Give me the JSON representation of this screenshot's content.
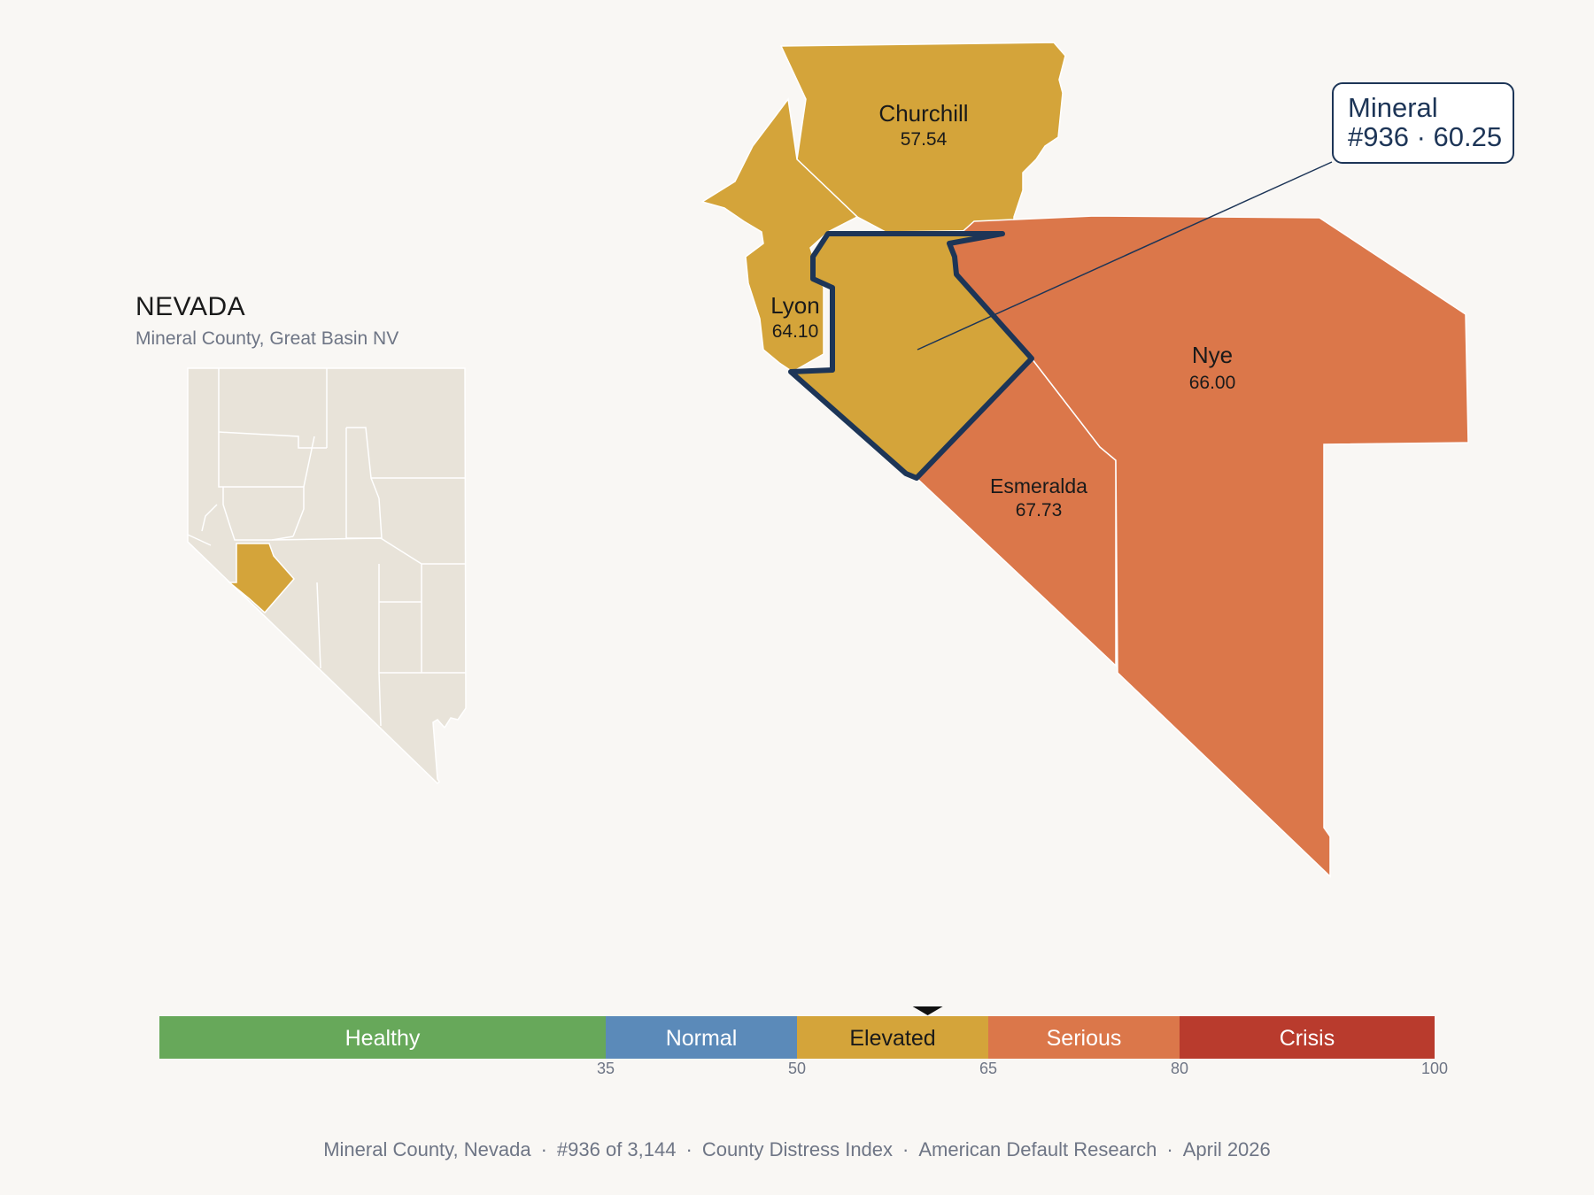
{
  "state": {
    "title": "NEVADA",
    "subtitle": "Mineral County, Great Basin NV"
  },
  "colors": {
    "background": "#f9f7f4",
    "inset_fill": "#e8e3d9",
    "highlight": "#d4a43a",
    "outline": "#1d3557",
    "healthy": "#67a85a",
    "normal": "#5b8ab9",
    "elevated": "#d4a43a",
    "serious": "#db774a",
    "crisis": "#b93b2d"
  },
  "counties": [
    {
      "name": "Churchill",
      "score": "57.54",
      "tier": "elevated"
    },
    {
      "name": "Lyon",
      "score": "64.10",
      "tier": "elevated"
    },
    {
      "name": "Mineral",
      "score": "60.25",
      "tier": "elevated",
      "selected": true
    },
    {
      "name": "Nye",
      "score": "66.00",
      "tier": "serious"
    },
    {
      "name": "Esmeralda",
      "score": "67.73",
      "tier": "serious"
    }
  ],
  "callout": {
    "name": "Mineral",
    "detail": "#936 · 60.25"
  },
  "scale": {
    "min": 0,
    "max": 100,
    "marker_value": 60.25,
    "segments": [
      {
        "label": "Healthy",
        "from": 0,
        "to": 35,
        "color": "#67a85a",
        "text_color": "#ffffff"
      },
      {
        "label": "Normal",
        "from": 35,
        "to": 50,
        "color": "#5b8ab9",
        "text_color": "#ffffff"
      },
      {
        "label": "Elevated",
        "from": 50,
        "to": 65,
        "color": "#d4a43a",
        "text_color": "#1a1a1a"
      },
      {
        "label": "Serious",
        "from": 65,
        "to": 80,
        "color": "#db774a",
        "text_color": "#ffffff"
      },
      {
        "label": "Crisis",
        "from": 80,
        "to": 100,
        "color": "#b93b2d",
        "text_color": "#ffffff"
      }
    ],
    "ticks": [
      "35",
      "50",
      "65",
      "80",
      "100"
    ]
  },
  "footer": {
    "county": "Mineral County, Nevada",
    "rank": "#936 of 3,144",
    "index": "County Distress Index",
    "source": "American Default Research",
    "date": "April 2026",
    "separator": "·"
  }
}
